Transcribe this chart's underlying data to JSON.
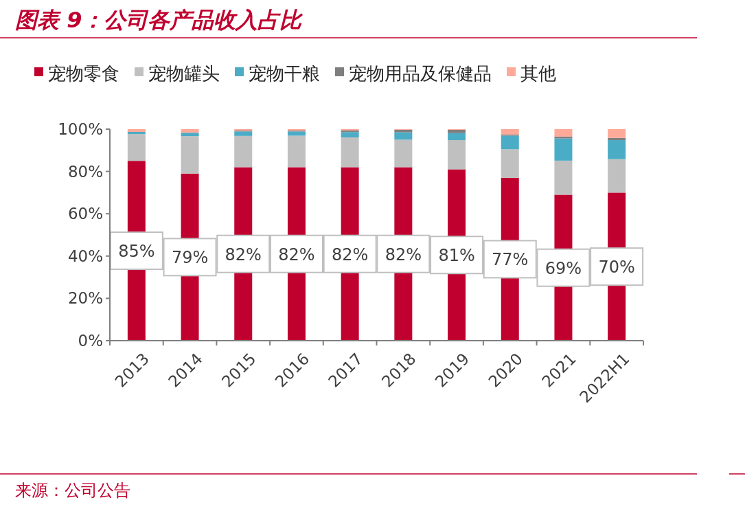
{
  "chart_data": {
    "type": "bar",
    "stacked": true,
    "title": "图表 9：公司各产品收入占比",
    "categories": [
      "2013",
      "2014",
      "2015",
      "2016",
      "2017",
      "2018",
      "2019",
      "2020",
      "2021",
      "2022H1"
    ],
    "series": [
      {
        "name": "宠物零食",
        "color": "#c0002f",
        "values": [
          85,
          79,
          82,
          82,
          82,
          82,
          81,
          77,
          69,
          70
        ],
        "value_labels": [
          "85%",
          "79%",
          "82%",
          "82%",
          "82%",
          "82%",
          "81%",
          "77%",
          "69%",
          "70%"
        ]
      },
      {
        "name": "宠物罐头",
        "color": "#c0c0c0",
        "values": [
          12.7,
          17.7,
          14.8,
          14.9,
          14.1,
          13,
          13.8,
          13.5,
          16.1,
          15.8
        ]
      },
      {
        "name": "宠物干粮",
        "color": "#4bacc6",
        "values": [
          1,
          1.6,
          2.1,
          2,
          2.5,
          3.5,
          3.3,
          6.4,
          10.5,
          9
        ]
      },
      {
        "name": "宠物用品及保健品",
        "color": "#7f7f7f",
        "values": [
          0,
          0,
          0.4,
          0.4,
          0.8,
          1.2,
          1.6,
          0.6,
          0.9,
          1.1
        ]
      },
      {
        "name": "其他",
        "color": "#ffaa99",
        "values": [
          1.3,
          1.7,
          0.7,
          0.7,
          0.6,
          0.3,
          0.3,
          2.5,
          3.5,
          4.1
        ]
      }
    ],
    "ylim": [
      0,
      100
    ],
    "yticks": [
      {
        "value": 0,
        "label": "0%"
      },
      {
        "value": 20,
        "label": "20%"
      },
      {
        "value": 40,
        "label": "40%"
      },
      {
        "value": 60,
        "label": "60%"
      },
      {
        "value": 80,
        "label": "80%"
      },
      {
        "value": 100,
        "label": "100%"
      }
    ],
    "legend": "top left",
    "annotations": [
      "来源：公司公告"
    ]
  }
}
